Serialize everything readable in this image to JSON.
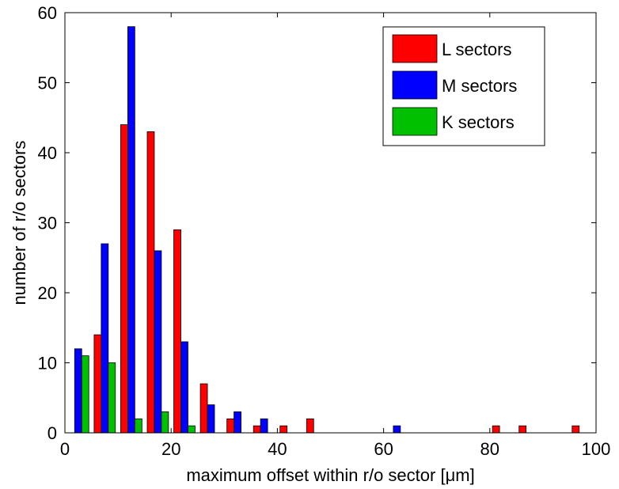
{
  "chart_data": {
    "type": "bar",
    "xlabel": "maximum offset within r/o sector [μm]",
    "ylabel": "number of r/o sectors",
    "xlim": [
      0,
      100
    ],
    "ylim": [
      0,
      60
    ],
    "xticks": [
      0,
      20,
      40,
      60,
      80,
      100
    ],
    "yticks": [
      0,
      10,
      20,
      30,
      40,
      50,
      60
    ],
    "grid": false,
    "legend_position": "top-right",
    "bin_width": 5,
    "categories": [
      2.5,
      7.5,
      12.5,
      17.5,
      22.5,
      27.5,
      32.5,
      37.5,
      42.5,
      47.5,
      52.5,
      57.5,
      62.5,
      67.5,
      72.5,
      77.5,
      82.5,
      87.5,
      92.5,
      97.5
    ],
    "series": [
      {
        "name": "L sectors",
        "color": "#ff0000",
        "values": [
          0,
          14,
          44,
          43,
          29,
          7,
          2,
          1,
          1,
          2,
          0,
          0,
          0,
          0,
          0,
          0,
          1,
          1,
          0,
          1
        ]
      },
      {
        "name": "M sectors",
        "color": "#0000ff",
        "values": [
          12,
          27,
          58,
          26,
          13,
          4,
          3,
          2,
          0,
          0,
          0,
          0,
          1,
          0,
          0,
          0,
          0,
          0,
          0,
          0
        ]
      },
      {
        "name": "K sectors",
        "color": "#00c000",
        "values": [
          11,
          10,
          2,
          3,
          1,
          0,
          0,
          0,
          0,
          0,
          0,
          0,
          0,
          0,
          0,
          0,
          0,
          0,
          0,
          0
        ]
      }
    ]
  }
}
